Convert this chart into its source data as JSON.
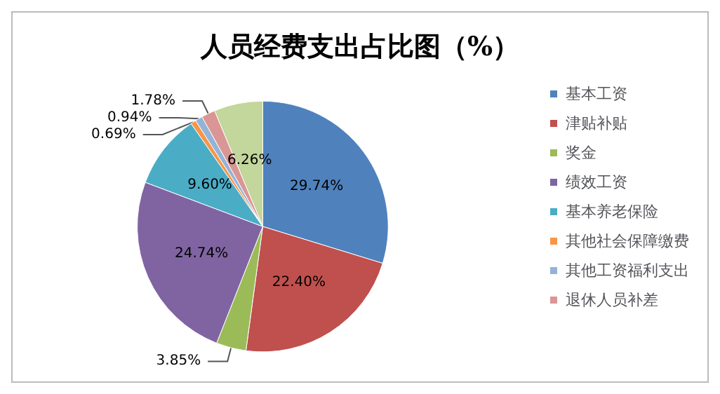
{
  "chart_data": {
    "type": "pie",
    "title": "人员经费支出占比图（%）",
    "categories": [
      "基本工资",
      "津贴补贴",
      "奖金",
      "绩效工资",
      "基本养老保险",
      "其他社会保障缴费",
      "其他工资福利支出",
      "退休人员补差",
      null
    ],
    "values": [
      29.74,
      22.4,
      3.85,
      24.74,
      9.6,
      0.69,
      0.94,
      1.78,
      6.26
    ],
    "value_labels": [
      "29.74%",
      "22.40%",
      "3.85%",
      "24.74%",
      "9.60%",
      "0.69%",
      "0.94%",
      "1.78%",
      "6.26%"
    ],
    "colors": [
      "#4f81bd",
      "#c0504d",
      "#9bbb59",
      "#8064a2",
      "#4bacc6",
      "#f79646",
      "#95b3d7",
      "#da9694",
      "#c3d69b"
    ],
    "legend": "right"
  }
}
